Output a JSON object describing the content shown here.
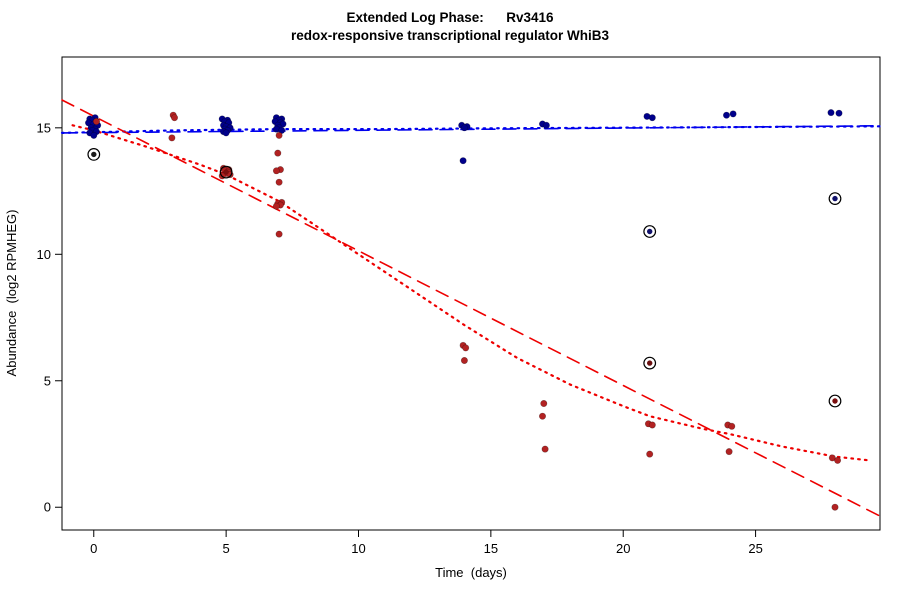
{
  "background": "#ffffff",
  "chart_data": {
    "type": "scatter",
    "title": "Extended Log Phase:      Rv3416",
    "subtitle": "redox-responsive transcriptional regulator WhiB3",
    "xlabel": "Time  (days)",
    "ylabel": "Abundance  (log2 RPMHEG)",
    "xlim": [
      -1.2,
      29.7
    ],
    "ylim": [
      -0.9,
      17.8
    ],
    "x_ticks": [
      0,
      5,
      10,
      15,
      20,
      25
    ],
    "y_ticks": [
      0,
      5,
      10,
      15
    ],
    "grid": false,
    "legend": "none",
    "series": [
      {
        "name": "blue-condition",
        "color": "#00008B",
        "points": [
          [
            -0.15,
            15.35
          ],
          [
            0.05,
            15.4
          ],
          [
            -0.05,
            15.3
          ],
          [
            0.1,
            15.25
          ],
          [
            -0.2,
            15.2
          ],
          [
            0,
            15.15
          ],
          [
            0.15,
            15.1
          ],
          [
            -0.1,
            15.0
          ],
          [
            0.05,
            14.95
          ],
          [
            -0.05,
            14.9
          ],
          [
            0.1,
            14.85
          ],
          [
            -0.15,
            14.8
          ],
          [
            0,
            14.7
          ],
          [
            4.85,
            15.35
          ],
          [
            5.05,
            15.3
          ],
          [
            4.95,
            15.25
          ],
          [
            5.1,
            15.2
          ],
          [
            4.9,
            15.1
          ],
          [
            5.0,
            15.05
          ],
          [
            5.15,
            15.0
          ],
          [
            4.95,
            14.95
          ],
          [
            5.05,
            14.9
          ],
          [
            4.9,
            14.85
          ],
          [
            5.0,
            14.8
          ],
          [
            6.9,
            15.4
          ],
          [
            7.1,
            15.35
          ],
          [
            7.0,
            15.3
          ],
          [
            6.85,
            15.25
          ],
          [
            7.05,
            15.2
          ],
          [
            7.15,
            15.15
          ],
          [
            6.95,
            15.1
          ],
          [
            7.0,
            15.0
          ],
          [
            6.9,
            14.95
          ],
          [
            7.1,
            14.9
          ],
          [
            13.9,
            15.1
          ],
          [
            14.1,
            15.05
          ],
          [
            14.0,
            15.0
          ],
          [
            13.95,
            13.7
          ],
          [
            16.95,
            15.15
          ],
          [
            17.1,
            15.1
          ],
          [
            20.9,
            15.45
          ],
          [
            21.1,
            15.4
          ],
          [
            23.9,
            15.5
          ],
          [
            24.15,
            15.55
          ],
          [
            27.85,
            15.6
          ],
          [
            28.15,
            15.58
          ]
        ]
      },
      {
        "name": "red-condition",
        "color": "#B22222",
        "points": [
          [
            0.1,
            15.25
          ],
          [
            3.0,
            15.5
          ],
          [
            3.05,
            15.4
          ],
          [
            2.95,
            14.6
          ],
          [
            4.9,
            13.4
          ],
          [
            5.1,
            13.35
          ],
          [
            4.95,
            13.3
          ],
          [
            5.05,
            13.25
          ],
          [
            5.0,
            13.2
          ],
          [
            5.15,
            13.15
          ],
          [
            4.85,
            13.1
          ],
          [
            7.0,
            14.7
          ],
          [
            6.95,
            14.0
          ],
          [
            7.05,
            13.35
          ],
          [
            6.9,
            13.3
          ],
          [
            7.0,
            12.85
          ],
          [
            7.1,
            12.05
          ],
          [
            6.95,
            12.0
          ],
          [
            7.05,
            11.95
          ],
          [
            6.9,
            11.9
          ],
          [
            7.0,
            10.8
          ],
          [
            13.95,
            6.4
          ],
          [
            14.05,
            6.3
          ],
          [
            14.0,
            5.8
          ],
          [
            17.0,
            4.1
          ],
          [
            16.95,
            3.6
          ],
          [
            17.05,
            2.3
          ],
          [
            20.95,
            3.3
          ],
          [
            21.1,
            3.25
          ],
          [
            21.0,
            2.1
          ],
          [
            23.95,
            3.25
          ],
          [
            24.1,
            3.2
          ],
          [
            24.0,
            2.2
          ],
          [
            27.9,
            1.95
          ],
          [
            28.1,
            1.85
          ],
          [
            28.0,
            0.0
          ]
        ]
      }
    ],
    "flagged_points": [
      {
        "x": 0,
        "y": 13.95,
        "color": "#1a1a1a"
      },
      {
        "x": 5,
        "y": 13.25,
        "color": "#7a0f0f"
      },
      {
        "x": 21,
        "y": 10.9,
        "color": "#10106a"
      },
      {
        "x": 21,
        "y": 5.7,
        "color": "#6a0f0f"
      },
      {
        "x": 28,
        "y": 12.2,
        "color": "#10106a"
      },
      {
        "x": 28,
        "y": 4.2,
        "color": "#7a0f0f"
      }
    ],
    "lines": [
      {
        "name": "blue-linear-fit",
        "style": "dashed",
        "color": "#0000EE",
        "points": [
          [
            -1.2,
            14.8
          ],
          [
            29.7,
            15.08
          ]
        ]
      },
      {
        "name": "blue-loess-fit",
        "style": "dotted",
        "color": "#0000EE",
        "points": [
          [
            -1.2,
            14.8
          ],
          [
            3,
            14.9
          ],
          [
            7,
            14.95
          ],
          [
            11,
            14.95
          ],
          [
            15,
            14.98
          ],
          [
            19,
            15.0
          ],
          [
            23,
            15.02
          ],
          [
            29.7,
            15.06
          ]
        ]
      },
      {
        "name": "red-linear-fit",
        "style": "dashed",
        "color": "#EE0000",
        "points": [
          [
            -1.2,
            16.1
          ],
          [
            29.7,
            -0.35
          ]
        ]
      },
      {
        "name": "red-loess-fit",
        "style": "dotted",
        "color": "#EE0000",
        "points": [
          [
            -0.8,
            15.1
          ],
          [
            0,
            14.9
          ],
          [
            2,
            14.25
          ],
          [
            4,
            13.55
          ],
          [
            5,
            13.15
          ],
          [
            7,
            12.1
          ],
          [
            9,
            10.7
          ],
          [
            11,
            9.3
          ],
          [
            13,
            7.9
          ],
          [
            14,
            7.2
          ],
          [
            16,
            5.9
          ],
          [
            18,
            4.85
          ],
          [
            20,
            4.0
          ],
          [
            21,
            3.6
          ],
          [
            23,
            3.1
          ],
          [
            24,
            2.9
          ],
          [
            26,
            2.4
          ],
          [
            28,
            2.0
          ],
          [
            29.3,
            1.85
          ]
        ]
      }
    ]
  }
}
